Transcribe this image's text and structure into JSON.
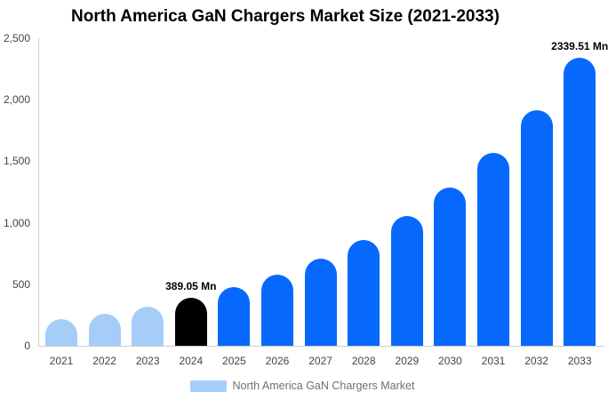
{
  "chart_data": {
    "type": "bar",
    "title": "North America GaN Chargers Market Size (2021-2033)",
    "categories": [
      "2021",
      "2022",
      "2023",
      "2024",
      "2025",
      "2026",
      "2027",
      "2028",
      "2029",
      "2030",
      "2031",
      "2032",
      "2033"
    ],
    "values": [
      214,
      261,
      319,
      389.05,
      475,
      580,
      707,
      863,
      1054,
      1286,
      1570,
      1917,
      2339.51
    ],
    "unit": "Mn",
    "xlabel": "",
    "ylabel": "",
    "ylim": [
      0,
      2500
    ],
    "ytick_values": [
      0,
      500,
      1000,
      1500,
      2000,
      2500
    ],
    "ytick_labels": [
      "0",
      "500",
      "1,000",
      "1,500",
      "2,000",
      "2,500"
    ],
    "grid": false,
    "legend_position": "bottom",
    "bar_colors": [
      "#A5CDF8",
      "#A5CDF8",
      "#A5CDF8",
      "#000000",
      "#0768FE",
      "#0768FE",
      "#0768FE",
      "#0768FE",
      "#0768FE",
      "#0768FE",
      "#0768FE",
      "#0768FE",
      "#0768FE"
    ],
    "annotations": [
      {
        "category": "2024",
        "label": "389.05 Mn"
      },
      {
        "category": "2033",
        "label": "2339.51 Mn"
      }
    ],
    "legend": {
      "label": "North America GaN Chargers Market",
      "swatch_color": "#A5CDF8"
    },
    "colors": {
      "axis_line": "#cccccc",
      "tick_label": "#444444",
      "legend_text": "#707070",
      "title": "#000000",
      "background": "#ffffff"
    }
  }
}
